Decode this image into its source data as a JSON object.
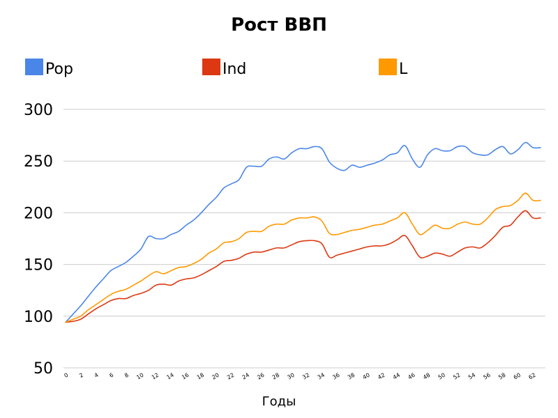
{
  "chart_data": {
    "type": "line",
    "title": "Рост ВВП",
    "xlabel": "Годы",
    "ylabel": "",
    "ylim": [
      50,
      300
    ],
    "yticks": [
      50,
      100,
      150,
      200,
      250,
      300
    ],
    "grid": true,
    "legend_position": "top",
    "x": [
      0,
      1,
      2,
      3,
      4,
      5,
      6,
      7,
      8,
      9,
      10,
      11,
      12,
      13,
      14,
      15,
      16,
      17,
      18,
      19,
      20,
      21,
      22,
      23,
      24,
      25,
      26,
      27,
      28,
      29,
      30,
      31,
      32,
      33,
      34,
      35,
      36,
      37,
      38,
      39,
      40,
      41,
      42,
      43,
      44,
      45,
      46,
      47,
      48,
      49,
      50,
      51,
      52,
      53,
      54,
      55,
      56,
      57,
      58,
      59,
      60,
      61,
      62,
      63
    ],
    "xtick_labels": [
      "0",
      "2",
      "4",
      "6",
      "8",
      "10",
      "12",
      "14",
      "16",
      "18",
      "20",
      "22",
      "24",
      "26",
      "28",
      "30",
      "32",
      "34",
      "36",
      "38",
      "40",
      "42",
      "44",
      "46",
      "48",
      "50",
      "52",
      "54",
      "56",
      "58",
      "60",
      "62"
    ],
    "series": [
      {
        "name": "Pop",
        "color": "#4a86e8",
        "values": [
          94,
          102,
          110,
          119,
          128,
          136,
          144,
          148,
          152,
          158,
          165,
          177,
          175,
          175,
          179,
          182,
          188,
          193,
          200,
          208,
          215,
          224,
          228,
          232,
          244,
          245,
          245,
          252,
          254,
          252,
          258,
          262,
          262,
          264,
          262,
          249,
          243,
          241,
          246,
          244,
          246,
          248,
          251,
          256,
          258,
          265,
          252,
          244,
          256,
          262,
          260,
          260,
          264,
          264,
          258,
          256,
          256,
          261,
          264,
          257,
          261,
          268,
          263,
          263
        ]
      },
      {
        "name": "Ind",
        "color": "#dc3912",
        "values": [
          94,
          95,
          97,
          102,
          107,
          111,
          115,
          117,
          117,
          120,
          122,
          125,
          130,
          131,
          130,
          134,
          136,
          137,
          140,
          144,
          148,
          153,
          154,
          156,
          160,
          162,
          162,
          164,
          166,
          166,
          169,
          172,
          173,
          173,
          170,
          157,
          159,
          161,
          163,
          165,
          167,
          168,
          168,
          170,
          174,
          178,
          168,
          157,
          158,
          161,
          160,
          158,
          162,
          166,
          167,
          166,
          171,
          178,
          186,
          188,
          196,
          202,
          195,
          195
        ]
      },
      {
        "name": "L",
        "color": "#ff9900",
        "values": [
          94,
          97,
          100,
          106,
          111,
          116,
          121,
          124,
          126,
          130,
          134,
          139,
          143,
          141,
          144,
          147,
          148,
          151,
          155,
          161,
          165,
          171,
          172,
          175,
          181,
          182,
          182,
          187,
          189,
          189,
          193,
          195,
          195,
          196,
          192,
          180,
          179,
          181,
          183,
          184,
          186,
          188,
          189,
          192,
          195,
          200,
          189,
          179,
          183,
          188,
          185,
          185,
          189,
          191,
          189,
          189,
          195,
          203,
          206,
          207,
          212,
          219,
          212,
          212
        ]
      }
    ]
  }
}
